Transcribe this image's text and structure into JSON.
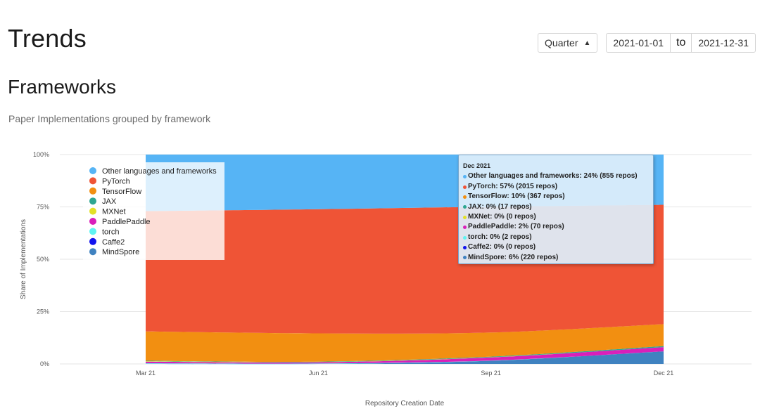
{
  "header": {
    "title": "Trends"
  },
  "controls": {
    "period": "Quarter",
    "start_date": "2021-01-01",
    "separator": "to",
    "end_date": "2021-12-31"
  },
  "section": {
    "title": "Frameworks",
    "subtitle": "Paper Implementations grouped by framework"
  },
  "tooltip": {
    "date": "Dec 2021",
    "rows": [
      "Other languages and frameworks: 24% (855 repos)",
      "PyTorch: 57% (2015 repos)",
      "TensorFlow: 10% (367 repos)",
      "JAX: 0% (17 repos)",
      "MXNet: 0% (0 repos)",
      "PaddlePaddle: 2% (70 repos)",
      "torch: 0% (2 repos)",
      "Caffe2: 0% (0 repos)",
      "MindSpore: 6% (220 repos)"
    ]
  },
  "chart_data": {
    "type": "area",
    "stacked": "percent",
    "title": "",
    "xlabel": "Repository Creation Date",
    "ylabel": "Share of Implementations",
    "categories": [
      "Mar 21",
      "Jun 21",
      "Sep 21",
      "Dec 21"
    ],
    "y_ticks": [
      "0%",
      "25%",
      "50%",
      "75%",
      "100%"
    ],
    "ylim": [
      0,
      100
    ],
    "legend_position": "top-left",
    "series": [
      {
        "name": "MindSpore",
        "color": "#3f82c0",
        "values": [
          0,
          0,
          1.5,
          6
        ]
      },
      {
        "name": "Caffe2",
        "color": "#1212ee",
        "values": [
          0,
          0,
          0,
          0
        ]
      },
      {
        "name": "torch",
        "color": "#5ff3f2",
        "values": [
          0.3,
          0.2,
          0.1,
          0
        ]
      },
      {
        "name": "PaddlePaddle",
        "color": "#d91fba",
        "values": [
          0.8,
          0.6,
          1.5,
          2
        ]
      },
      {
        "name": "MXNet",
        "color": "#e2e027",
        "values": [
          0.2,
          0.1,
          0.1,
          0
        ]
      },
      {
        "name": "JAX",
        "color": "#2da691",
        "values": [
          0.2,
          0.2,
          0.3,
          0.5
        ]
      },
      {
        "name": "TensorFlow",
        "color": "#f28f11",
        "values": [
          14,
          13.5,
          11.5,
          10.5
        ]
      },
      {
        "name": "PyTorch",
        "color": "#ef5436",
        "values": [
          57.5,
          59.3,
          60.1,
          57
        ]
      },
      {
        "name": "Other languages and frameworks",
        "color": "#56b4f5",
        "values": [
          27,
          26.1,
          24.9,
          24
        ]
      }
    ],
    "legend_order": [
      "Other languages and frameworks",
      "PyTorch",
      "TensorFlow",
      "JAX",
      "MXNet",
      "PaddlePaddle",
      "torch",
      "Caffe2",
      "MindSpore"
    ]
  }
}
